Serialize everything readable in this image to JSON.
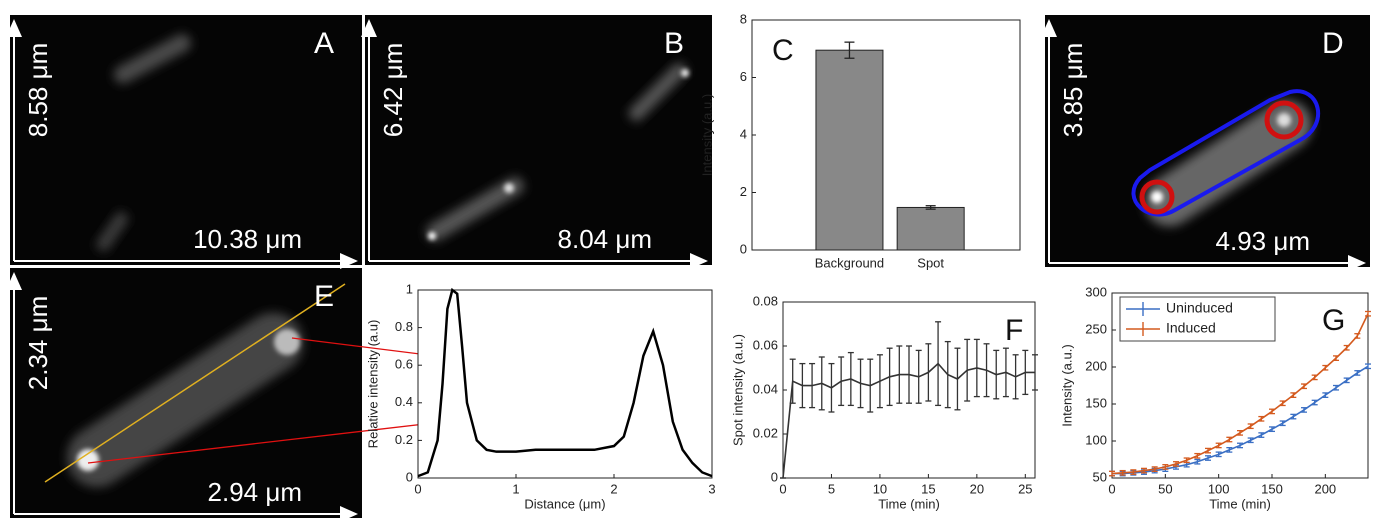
{
  "panels": [
    {
      "letter": "A",
      "height_label": "8.58 μm",
      "width_label": "10.38 μm"
    },
    {
      "letter": "B",
      "height_label": "6.42 μm",
      "width_label": "8.04 μm"
    },
    {
      "letter": "D",
      "height_label": "3.85 μm",
      "width_label": "4.93 μm"
    },
    {
      "letter": "E",
      "height_label": "2.34 μm",
      "width_label": "2.94 μm"
    }
  ],
  "chart_data": [
    {
      "type": "bar",
      "label": "C",
      "y_label": "Intensity (a.u.)",
      "categories": [
        "Background",
        "Spot"
      ],
      "values": [
        6.95,
        1.48
      ],
      "errors": [
        0.28,
        0.06
      ],
      "color": "#888888",
      "ylim": [
        0,
        8
      ],
      "yticks": [
        0,
        2,
        4,
        6,
        8
      ]
    },
    {
      "type": "line",
      "y_label": "Relative intensity (a.u)",
      "x_label": "Distance (μm)",
      "x": [
        0,
        0.1,
        0.2,
        0.25,
        0.3,
        0.35,
        0.4,
        0.45,
        0.5,
        0.6,
        0.7,
        0.8,
        1,
        1.2,
        1.4,
        1.6,
        1.8,
        2,
        2.1,
        2.2,
        2.3,
        2.4,
        2.5,
        2.6,
        2.7,
        2.8,
        2.9,
        3
      ],
      "series": [
        {
          "color": "#000000",
          "values": [
            0.01,
            0.03,
            0.2,
            0.5,
            0.9,
            1,
            0.98,
            0.7,
            0.4,
            0.2,
            0.15,
            0.14,
            0.14,
            0.15,
            0.15,
            0.15,
            0.15,
            0.17,
            0.22,
            0.4,
            0.65,
            0.78,
            0.6,
            0.3,
            0.15,
            0.08,
            0.03,
            0.01
          ]
        }
      ],
      "xlim": [
        0,
        3
      ],
      "xticks": [
        0,
        1,
        2,
        3
      ],
      "ylim": [
        0,
        1
      ],
      "yticks": [
        0,
        0.2,
        0.4,
        0.6,
        0.8,
        1
      ]
    },
    {
      "type": "line",
      "label": "F",
      "y_label": "Spot intensity (a.u.)",
      "x_label": "Time (min)",
      "x": [
        0,
        1,
        2,
        3,
        4,
        5,
        6,
        7,
        8,
        9,
        10,
        11,
        12,
        13,
        14,
        15,
        16,
        17,
        18,
        19,
        20,
        21,
        22,
        23,
        24,
        25,
        26
      ],
      "series": [
        {
          "color": "#333333",
          "values": [
            0,
            0.044,
            0.042,
            0.042,
            0.043,
            0.041,
            0.044,
            0.045,
            0.043,
            0.042,
            0.044,
            0.046,
            0.047,
            0.047,
            0.046,
            0.048,
            0.052,
            0.047,
            0.045,
            0.049,
            0.05,
            0.049,
            0.047,
            0.048,
            0.046,
            0.048,
            0.048
          ],
          "errors": [
            0,
            0.01,
            0.01,
            0.01,
            0.012,
            0.011,
            0.011,
            0.012,
            0.011,
            0.012,
            0.012,
            0.013,
            0.013,
            0.013,
            0.012,
            0.013,
            0.019,
            0.015,
            0.014,
            0.014,
            0.013,
            0.012,
            0.011,
            0.011,
            0.01,
            0.01,
            0.008
          ]
        }
      ],
      "xlim": [
        0,
        26
      ],
      "xticks": [
        0,
        5,
        10,
        15,
        20,
        25
      ],
      "ylim": [
        0,
        0.08
      ],
      "yticks": [
        0,
        0.02,
        0.04,
        0.06,
        0.08
      ]
    },
    {
      "type": "line",
      "label": "G",
      "y_label": "Intensity (a.u.)",
      "x_label": "Time (min)",
      "legend": "top-left",
      "x": [
        0,
        10,
        20,
        30,
        40,
        50,
        60,
        70,
        80,
        90,
        100,
        110,
        120,
        130,
        140,
        150,
        160,
        170,
        180,
        190,
        200,
        210,
        220,
        230,
        240
      ],
      "series": [
        {
          "name": "Uninduced",
          "color": "#3a6fc4",
          "values": [
            56,
            56,
            57,
            58,
            60,
            62,
            65,
            68,
            72,
            77,
            82,
            88,
            94,
            101,
            108,
            116,
            124,
            133,
            142,
            152,
            162,
            172,
            182,
            192,
            201
          ],
          "errors": [
            3,
            3,
            3,
            3,
            3,
            3,
            3,
            3,
            3,
            3,
            3,
            3,
            3,
            3,
            3,
            3,
            3,
            3,
            3,
            3,
            3,
            3,
            3,
            3,
            3
          ]
        },
        {
          "name": "Induced",
          "color": "#d45a1e",
          "values": [
            56,
            57,
            58,
            60,
            62,
            65,
            69,
            74,
            80,
            87,
            94,
            102,
            111,
            120,
            130,
            140,
            151,
            162,
            174,
            186,
            199,
            212,
            226,
            242,
            272
          ],
          "errors": [
            3,
            3,
            3,
            3,
            3,
            3,
            3,
            3,
            3,
            3,
            3,
            3,
            3,
            3,
            3,
            3,
            3,
            3,
            3,
            3,
            3,
            3,
            3,
            3,
            3
          ]
        }
      ],
      "xlim": [
        0,
        240
      ],
      "xticks": [
        0,
        50,
        100,
        150,
        200
      ],
      "ylim": [
        50,
        300
      ],
      "yticks": [
        50,
        100,
        150,
        200,
        250,
        300
      ]
    }
  ]
}
